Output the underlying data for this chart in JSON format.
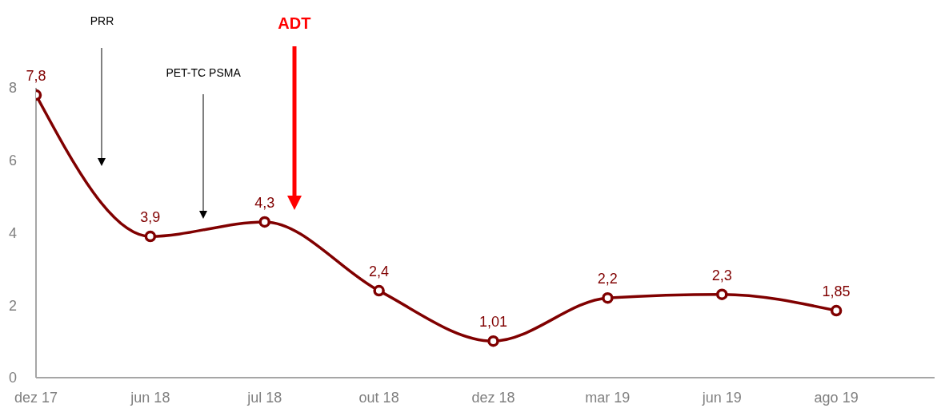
{
  "chart_data": {
    "type": "line",
    "categories": [
      "dez 17",
      "jun 18",
      "jul 18",
      "out 18",
      "dez 18",
      "mar 19",
      "jun 19",
      "ago 19"
    ],
    "series": [
      {
        "color": "#800000",
        "values": [
          7.8,
          3.9,
          4.3,
          2.4,
          1.01,
          2.2,
          2.3,
          1.85
        ],
        "value_labels": [
          "7,8",
          "3,9",
          "4,3",
          "2,4",
          "1,01",
          "2,2",
          "2,3",
          "1,85"
        ]
      }
    ],
    "ylim": [
      0,
      8
    ],
    "yticks": [
      0,
      2,
      4,
      6,
      8
    ],
    "marker": "circle",
    "line_style": "solid",
    "annotations": [
      "PRR",
      "PET-TC PSMA",
      "ADT"
    ]
  }
}
